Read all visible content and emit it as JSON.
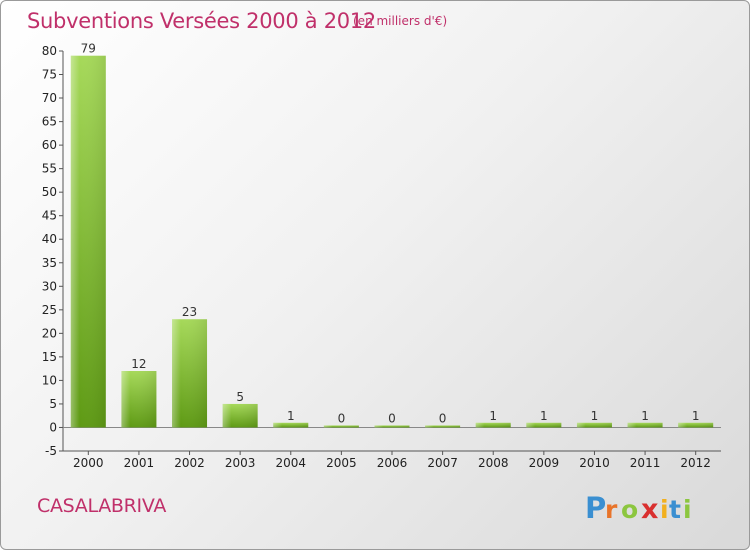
{
  "header": {
    "title": "Subventions Versées 2000 à 2012",
    "unit": "(en milliers d'€)"
  },
  "footer": {
    "commune": "CASALABRIVA",
    "logo_text": "Proxiti"
  },
  "colors": {
    "title": "#c0306a",
    "bar_light": "#a6d95a",
    "bar_dark": "#5e9a14"
  },
  "chart_data": {
    "type": "bar",
    "title": "Subventions Versées 2000 à 2012",
    "subtitle": "(en milliers d'€)",
    "categories": [
      "2000",
      "2001",
      "2002",
      "2003",
      "2004",
      "2005",
      "2006",
      "2007",
      "2008",
      "2009",
      "2010",
      "2011",
      "2012"
    ],
    "values": [
      79,
      12,
      23,
      5,
      1,
      0,
      0,
      0,
      1,
      1,
      1,
      1,
      1
    ],
    "ylim": [
      -5,
      80
    ],
    "yticks": [
      -5,
      0,
      5,
      10,
      15,
      20,
      25,
      30,
      35,
      40,
      45,
      50,
      55,
      60,
      65,
      70,
      75,
      80
    ],
    "xlabel": "",
    "ylabel": "",
    "grid": false,
    "legend": "none"
  }
}
